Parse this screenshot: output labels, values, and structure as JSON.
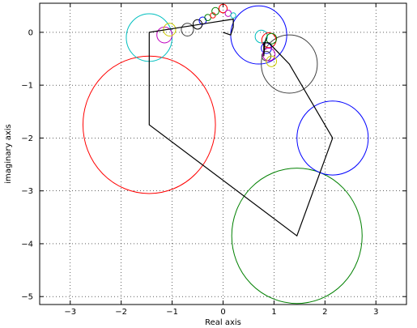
{
  "chart_data": {
    "type": "line",
    "xlabel": "Real axis",
    "ylabel": "imaginary axis",
    "xlim": [
      -3.6,
      3.6
    ],
    "ylim": [
      -5.15,
      0.55
    ],
    "xticks": [
      -3,
      -2,
      -1,
      0,
      1,
      2,
      3
    ],
    "yticks": [
      -5,
      -4,
      -3,
      -2,
      -1,
      0
    ],
    "xtick_labels": [
      "−3",
      "−2",
      "−1",
      "0",
      "1",
      "2",
      "3"
    ],
    "ytick_labels": [
      "−5",
      "−4",
      "−3",
      "−2",
      "−1",
      "0"
    ],
    "grid": true,
    "polyline": {
      "color": "#000000",
      "points": [
        [
          0,
          0
        ],
        [
          0.15,
          -0.05
        ],
        [
          0.2,
          0.1
        ],
        [
          0.2,
          0.25
        ],
        [
          -1.45,
          0.0
        ],
        [
          -1.45,
          -1.75
        ],
        [
          1.45,
          -3.85
        ],
        [
          2.15,
          -2.0
        ],
        [
          1.3,
          -0.6
        ],
        [
          0.9,
          -0.2
        ],
        [
          0.8,
          -0.2
        ],
        [
          0.8,
          -0.45
        ],
        [
          0.82,
          -0.2
        ],
        [
          0.85,
          -0.1
        ]
      ]
    },
    "circles": [
      {
        "cx": -1.45,
        "cy": -1.75,
        "r": 1.3,
        "color": "#ff0000"
      },
      {
        "cx": 1.45,
        "cy": -3.85,
        "r": 1.28,
        "color": "#008000"
      },
      {
        "cx": 2.15,
        "cy": -2.0,
        "r": 0.7,
        "color": "#0000ff"
      },
      {
        "cx": 1.3,
        "cy": -0.6,
        "r": 0.55,
        "color": "#404040"
      },
      {
        "cx": -1.45,
        "cy": -0.1,
        "r": 0.45,
        "color": "#00bfbf"
      },
      {
        "cx": 0.7,
        "cy": -0.05,
        "r": 0.55,
        "color": "#0000ff"
      },
      {
        "cx": -1.15,
        "cy": -0.05,
        "r": 0.15,
        "color": "#bf00bf"
      },
      {
        "cx": -1.05,
        "cy": 0.05,
        "r": 0.12,
        "color": "#cccc00"
      },
      {
        "cx": -0.7,
        "cy": 0.05,
        "r": 0.12,
        "color": "#404040"
      },
      {
        "cx": -0.5,
        "cy": 0.15,
        "r": 0.09,
        "color": "#000000"
      },
      {
        "cx": -0.4,
        "cy": 0.22,
        "r": 0.07,
        "color": "#0000ff"
      },
      {
        "cx": -0.3,
        "cy": 0.28,
        "r": 0.06,
        "color": "#008000"
      },
      {
        "cx": -0.2,
        "cy": 0.32,
        "r": 0.05,
        "color": "#ff0000"
      },
      {
        "cx": -0.15,
        "cy": 0.4,
        "r": 0.07,
        "color": "#008000"
      },
      {
        "cx": 0.0,
        "cy": 0.45,
        "r": 0.08,
        "color": "#ff0000"
      },
      {
        "cx": 0.1,
        "cy": 0.36,
        "r": 0.06,
        "color": "#bf00bf"
      },
      {
        "cx": 0.2,
        "cy": 0.32,
        "r": 0.05,
        "color": "#00bfbf"
      },
      {
        "cx": 0.75,
        "cy": -0.08,
        "r": 0.12,
        "color": "#00bfbf"
      },
      {
        "cx": 0.9,
        "cy": -0.15,
        "r": 0.14,
        "color": "#ff0000"
      },
      {
        "cx": 0.95,
        "cy": -0.12,
        "r": 0.1,
        "color": "#008000"
      },
      {
        "cx": 0.85,
        "cy": -0.3,
        "r": 0.1,
        "color": "#0000ff"
      },
      {
        "cx": 0.85,
        "cy": -0.45,
        "r": 0.09,
        "color": "#404040"
      },
      {
        "cx": 0.9,
        "cy": -0.42,
        "r": 0.12,
        "color": "#bf00bf"
      },
      {
        "cx": 0.95,
        "cy": -0.55,
        "r": 0.1,
        "color": "#cccc00"
      }
    ]
  }
}
